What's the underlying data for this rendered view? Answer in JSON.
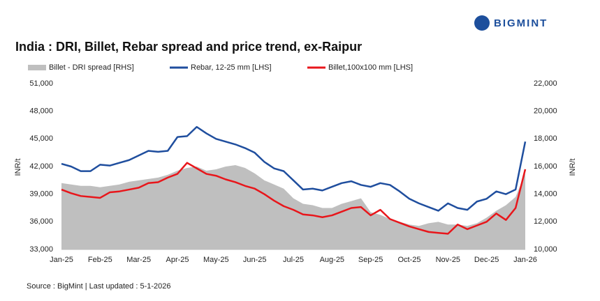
{
  "chart_data": {
    "type": "area-line",
    "title": "India : DRI, Billet, Rebar spread and price trend, ex-Raipur",
    "brand": "BIGMINT",
    "source": "Source : BigMint | Last updated : 5-1-2026",
    "ylabel": "INR/t",
    "y2label": "INR/t",
    "categories": [
      "Jan-25",
      null,
      null,
      null,
      "Feb-25",
      null,
      null,
      null,
      "Mar-25",
      null,
      null,
      null,
      "Apr-25",
      null,
      null,
      null,
      "May-25",
      null,
      null,
      null,
      "Jun-25",
      null,
      null,
      null,
      "Jul-25",
      null,
      null,
      null,
      "Aug-25",
      null,
      null,
      null,
      "Sep-25",
      null,
      null,
      null,
      "Oct-25",
      null,
      null,
      null,
      "Nov-25",
      null,
      null,
      null,
      "Dec-25",
      null,
      null,
      null,
      "Jan-26"
    ],
    "series": [
      {
        "name": "Billet - DRI spread  [RHS]",
        "kind": "area",
        "axis": "y2",
        "color": "#bfbfbf",
        "values": [
          14800,
          14700,
          14600,
          14600,
          14500,
          14600,
          14700,
          14900,
          15000,
          15100,
          15200,
          15400,
          15700,
          15900,
          16000,
          15700,
          15800,
          16000,
          16100,
          15900,
          15500,
          15000,
          14700,
          14400,
          13700,
          13300,
          13200,
          13000,
          13000,
          13300,
          13500,
          13700,
          12700,
          12500,
          12200,
          12000,
          11800,
          11700,
          11900,
          12000,
          11800,
          11800,
          11700,
          11900,
          12300,
          12800,
          13200,
          13800,
          15500
        ]
      },
      {
        "name": "Rebar, 12-25 mm [LHS]",
        "kind": "line",
        "axis": "y",
        "color": "#1f4e9e",
        "values": [
          42300,
          42000,
          41500,
          41500,
          42200,
          42100,
          42400,
          42700,
          43200,
          43700,
          43600,
          43700,
          45200,
          45300,
          46300,
          45600,
          45000,
          44700,
          44400,
          44000,
          43500,
          42500,
          41800,
          41500,
          40500,
          39500,
          39600,
          39400,
          39800,
          40200,
          40400,
          40000,
          39800,
          40200,
          40000,
          39300,
          38500,
          38000,
          37600,
          37200,
          38000,
          37500,
          37300,
          38200,
          38500,
          39300,
          39000,
          39500,
          44700
        ]
      },
      {
        "name": "Billet,100x100 mm [LHS]",
        "kind": "line",
        "axis": "y",
        "color": "#e8161b",
        "values": [
          39500,
          39100,
          38800,
          38700,
          38600,
          39200,
          39300,
          39500,
          39700,
          40200,
          40300,
          40800,
          41200,
          42400,
          41800,
          41200,
          41000,
          40600,
          40300,
          39900,
          39600,
          39000,
          38300,
          37700,
          37300,
          36800,
          36700,
          36500,
          36700,
          37100,
          37500,
          37600,
          36700,
          37300,
          36300,
          35900,
          35500,
          35200,
          34900,
          34800,
          34700,
          35700,
          35200,
          35600,
          36000,
          36900,
          36200,
          37500,
          41700
        ]
      }
    ],
    "ylim": [
      33000,
      51000
    ],
    "yticks": [
      {
        "value": 33000,
        "label": "33,000"
      },
      {
        "value": 36000,
        "label": "36,000"
      },
      {
        "value": 39000,
        "label": "39,000"
      },
      {
        "value": 42000,
        "label": "42,000"
      },
      {
        "value": 45000,
        "label": "45,000"
      },
      {
        "value": 48000,
        "label": "48,000"
      },
      {
        "value": 51000,
        "label": "51,000"
      }
    ],
    "y2lim": [
      10000,
      22000
    ],
    "y2ticks": [
      {
        "value": 10000,
        "label": "10,000"
      },
      {
        "value": 12000,
        "label": "12,000"
      },
      {
        "value": 14000,
        "label": "14,000"
      },
      {
        "value": 16000,
        "label": "16,000"
      },
      {
        "value": 18000,
        "label": "18,000"
      },
      {
        "value": 20000,
        "label": "20,000"
      },
      {
        "value": 22000,
        "label": "22,000"
      }
    ],
    "grid": false
  }
}
